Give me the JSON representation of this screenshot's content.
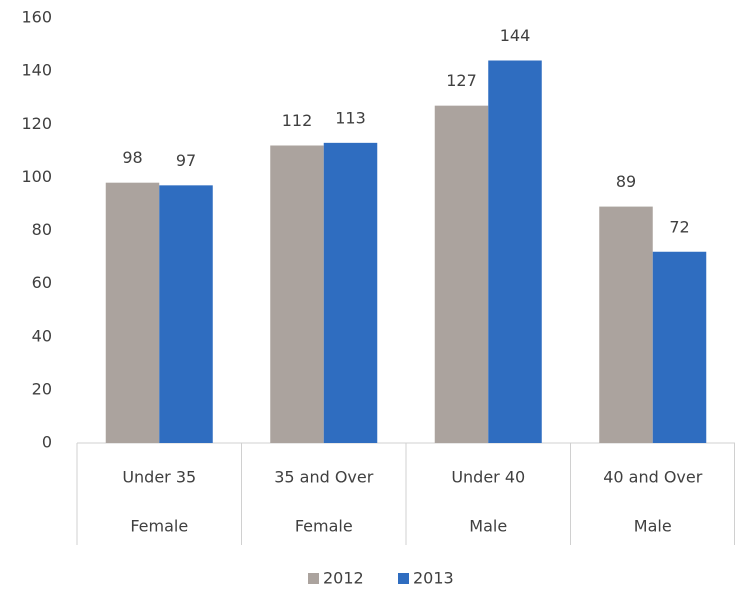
{
  "chart_data": {
    "type": "bar",
    "categories": [
      "Under 35",
      "35 and Over",
      "Under 40",
      "40 and Over"
    ],
    "category_groups": [
      "Female",
      "Female",
      "Male",
      "Male"
    ],
    "series": [
      {
        "name": "2012",
        "color": "#aba39e",
        "values": [
          98,
          112,
          127,
          89
        ]
      },
      {
        "name": "2013",
        "color": "#2f6dc0",
        "values": [
          97,
          113,
          144,
          72
        ]
      }
    ],
    "ylim": [
      0,
      160
    ],
    "yticks": [
      0,
      20,
      40,
      60,
      80,
      100,
      120,
      140,
      160
    ],
    "grid": false,
    "legend": "bottom"
  }
}
